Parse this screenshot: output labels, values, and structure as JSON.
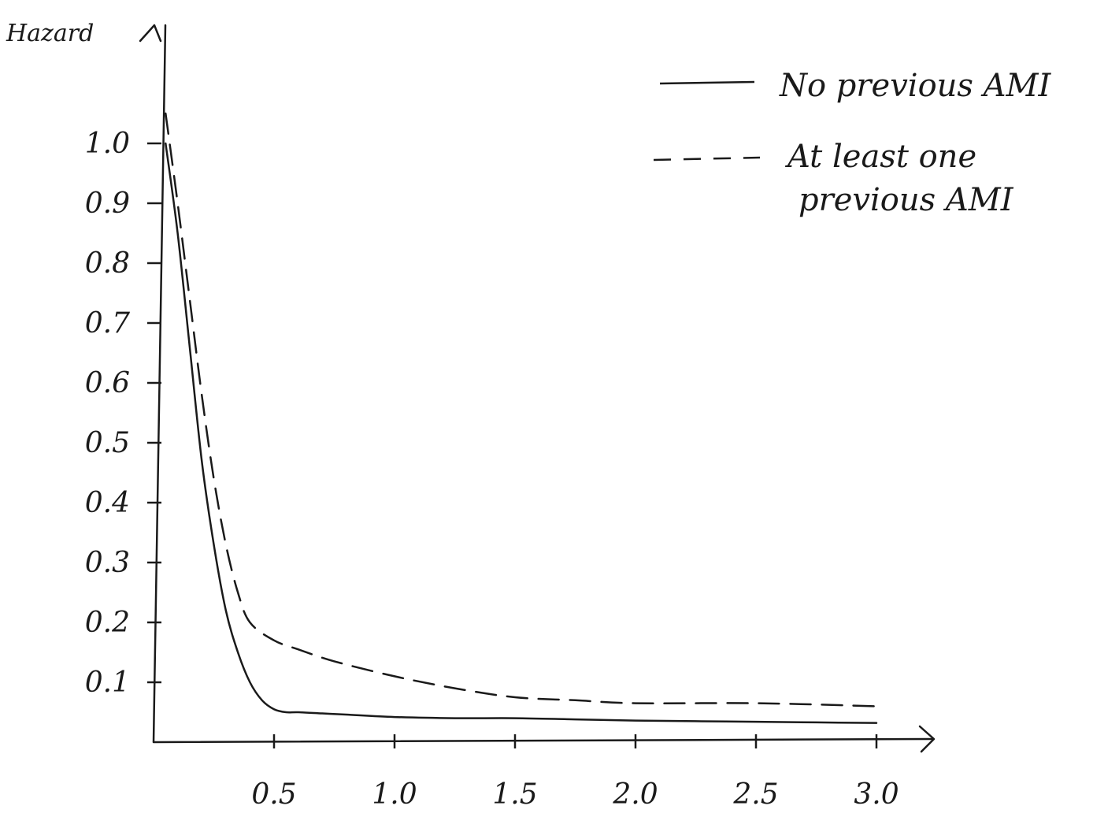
{
  "chart_data": {
    "type": "line",
    "title": "",
    "ylabel": "Hazard",
    "xlabel": "",
    "xlim": [
      0,
      3.0
    ],
    "ylim": [
      0,
      1.0
    ],
    "x_ticks": [
      {
        "value": 0.5,
        "label": "0.5"
      },
      {
        "value": 1.0,
        "label": "1.0"
      },
      {
        "value": 1.5,
        "label": "1.5"
      },
      {
        "value": 2.0,
        "label": "2.0"
      },
      {
        "value": 2.5,
        "label": "2.5"
      },
      {
        "value": 3.0,
        "label": "3.0"
      }
    ],
    "y_ticks": [
      {
        "value": 0.1,
        "label": "0.1"
      },
      {
        "value": 0.2,
        "label": "0.2"
      },
      {
        "value": 0.3,
        "label": "0.3"
      },
      {
        "value": 0.4,
        "label": "0.4"
      },
      {
        "value": 0.5,
        "label": "0.5"
      },
      {
        "value": 0.6,
        "label": "0.6"
      },
      {
        "value": 0.7,
        "label": "0.7"
      },
      {
        "value": 0.8,
        "label": "0.8"
      },
      {
        "value": 0.9,
        "label": "0.9"
      },
      {
        "value": 1.0,
        "label": "1.0"
      }
    ],
    "grid": false,
    "legend_position": "top-right",
    "series": [
      {
        "name": "No previous AMI",
        "style": "solid",
        "color": "#1a1a1a",
        "x": [
          0.05,
          0.1,
          0.15,
          0.2,
          0.25,
          0.3,
          0.35,
          0.4,
          0.45,
          0.5,
          0.55,
          0.6,
          0.7,
          0.8,
          1.0,
          1.25,
          1.5,
          1.75,
          2.0,
          2.25,
          2.5,
          2.75,
          3.0
        ],
        "y": [
          1.0,
          0.85,
          0.66,
          0.47,
          0.33,
          0.22,
          0.15,
          0.1,
          0.07,
          0.055,
          0.05,
          0.05,
          0.048,
          0.046,
          0.042,
          0.04,
          0.04,
          0.038,
          0.036,
          0.035,
          0.034,
          0.033,
          0.032
        ]
      },
      {
        "name": "At least one previous AMI",
        "style": "dashed",
        "color": "#1a1a1a",
        "x": [
          0.05,
          0.1,
          0.15,
          0.2,
          0.25,
          0.3,
          0.35,
          0.4,
          0.5,
          0.6,
          0.75,
          1.0,
          1.25,
          1.5,
          1.75,
          2.0,
          2.5,
          3.0
        ],
        "y": [
          1.05,
          0.9,
          0.74,
          0.58,
          0.44,
          0.33,
          0.25,
          0.2,
          0.17,
          0.155,
          0.135,
          0.11,
          0.09,
          0.075,
          0.07,
          0.065,
          0.065,
          0.06
        ]
      }
    ]
  }
}
